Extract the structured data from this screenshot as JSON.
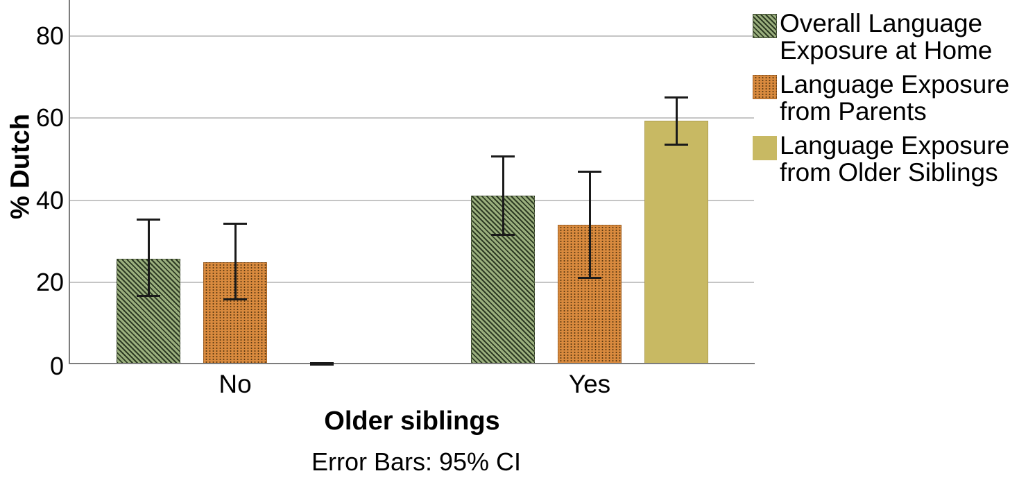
{
  "chart_data": {
    "type": "bar",
    "title": "",
    "xlabel": "Older siblings",
    "ylabel": "% Dutch",
    "caption": "Error Bars: 95% CI",
    "categories": [
      "No",
      "Yes"
    ],
    "y_ticks": [
      0,
      20,
      40,
      60,
      80
    ],
    "ylim": [
      0,
      88.8
    ],
    "grid": "horizontal",
    "legend_position": "right-outside-top",
    "error_bars": "95% CI",
    "series": [
      {
        "name": "Overall Language Exposure at Home",
        "legend_lines": [
          "Overall Language",
          "Exposure at Home"
        ],
        "pattern": "diagonal-hatch",
        "fill": "#9BB07E",
        "pattern_color": "#2E3B24",
        "values": [
          25.7,
          41.1
        ],
        "ci_low": [
          16.6,
          31.6
        ],
        "ci_high": [
          35.2,
          50.6
        ]
      },
      {
        "name": "Language Exposure from Parents",
        "legend_lines": [
          "Language Exposure",
          "from Parents"
        ],
        "pattern": "dots",
        "fill": "#D98A3E",
        "pattern_color": "#5C3A12",
        "values": [
          24.9,
          34.0
        ],
        "ci_low": [
          15.8,
          21.0
        ],
        "ci_high": [
          34.3,
          47.0
        ]
      },
      {
        "name": "Language Exposure from Older Siblings",
        "legend_lines": [
          "Language Exposure",
          "from Older Siblings"
        ],
        "pattern": "solid",
        "fill": "#C8B963",
        "pattern_color": "#C8B963",
        "values": [
          0.1,
          59.4
        ],
        "ci_low": [
          0.0,
          53.6
        ],
        "ci_high": [
          0.3,
          65.1
        ]
      }
    ],
    "colors": {
      "error_bar": "#1a1a1a",
      "axis": "#7d7d7d",
      "gridline": "#c5c5c5",
      "text": "#000000"
    }
  }
}
